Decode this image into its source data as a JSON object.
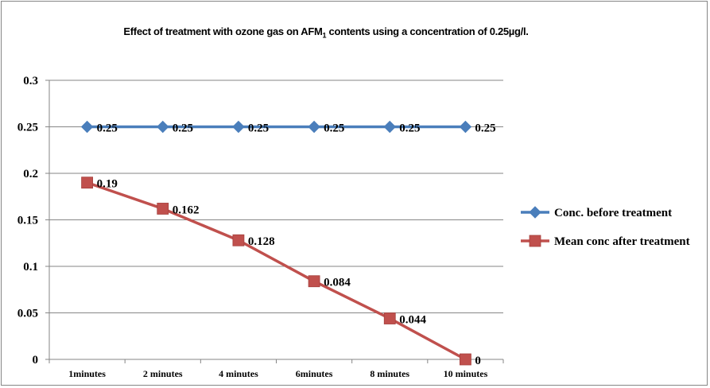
{
  "chart_data": {
    "type": "line",
    "title": {
      "before": "Effect of treatment with ozone gas on AFM",
      "subscript": "1",
      "after": " contents using a concentration of 0.25µg/l."
    },
    "categories": [
      "1minutes",
      "2 minutes",
      "4 minutes",
      "6minutes",
      "8 minutes",
      "10 minutes"
    ],
    "y_ticks": [
      "0",
      "0.05",
      "0.1",
      "0.15",
      "0.2",
      "0.25",
      "0.3"
    ],
    "ylim": [
      0,
      0.3
    ],
    "grid": "horizontal",
    "legend_position": "right",
    "series": [
      {
        "name": "Conc. before treatment",
        "values": [
          0.25,
          0.25,
          0.25,
          0.25,
          0.25,
          0.25
        ],
        "data_labels": [
          "0.25",
          "0.25",
          "0.25",
          "0.25",
          "0.25",
          "0.25"
        ],
        "color": "#4a7ebb",
        "marker": "diamond"
      },
      {
        "name": "Mean conc after treatment",
        "values": [
          0.19,
          0.162,
          0.128,
          0.084,
          0.044,
          0
        ],
        "data_labels": [
          "0.19",
          "0.162",
          "0.128",
          "0.084",
          "0.044",
          "0"
        ],
        "color": "#c0504d",
        "marker": "square"
      }
    ]
  }
}
